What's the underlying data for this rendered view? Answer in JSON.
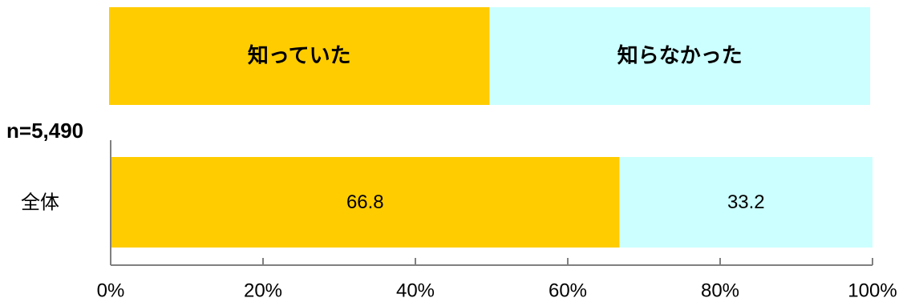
{
  "chart_data": {
    "type": "bar",
    "orientation": "horizontal",
    "stacked": true,
    "sample_size": "n=5,490",
    "categories": [
      "全体"
    ],
    "series": [
      {
        "name": "知っていた",
        "values": [
          66.8
        ],
        "color": "#FFCC00"
      },
      {
        "name": "知らなかった",
        "values": [
          33.2
        ],
        "color": "#CCFFFF"
      }
    ],
    "x_ticks": [
      "0%",
      "20%",
      "40%",
      "60%",
      "80%",
      "100%"
    ],
    "xlim": [
      0,
      100
    ],
    "grid": false,
    "legend_position": "top"
  }
}
